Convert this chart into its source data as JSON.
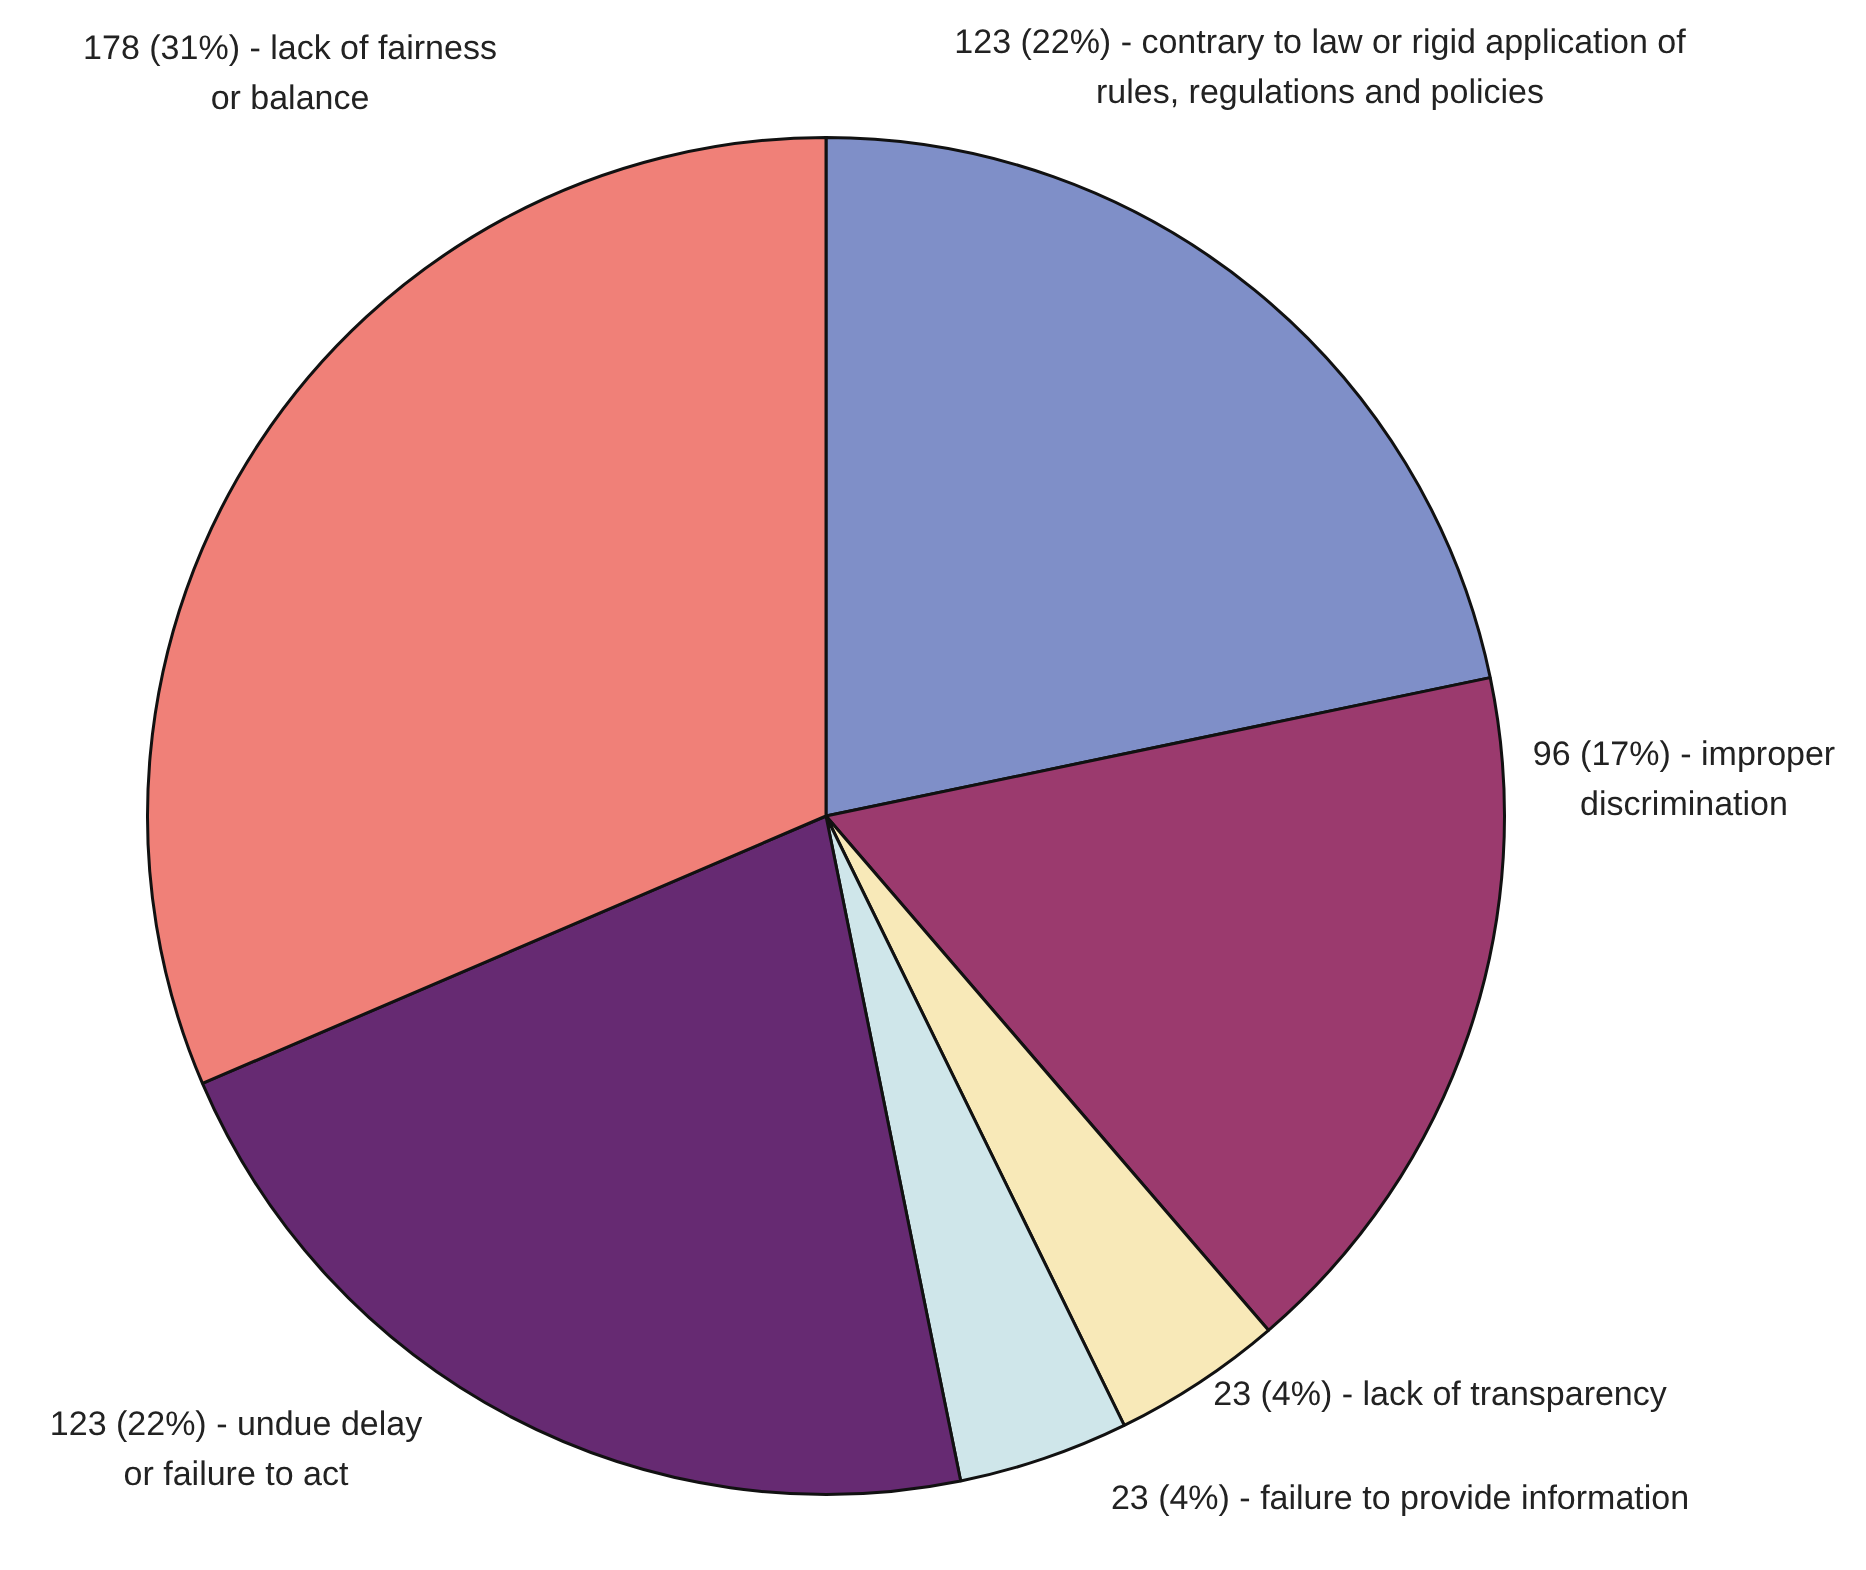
{
  "chart_data": {
    "type": "pie",
    "categories": [
      "123 (22%) - contrary to law or rigid application of rules, regulations and policies",
      "96 (17%) - improper discrimination",
      "23 (4%) - lack of transparency",
      "23 (4%) - failure to provide information",
      "123 (22%) - undue delay or failure to act",
      "178 (31%) - lack of fairness or balance"
    ],
    "values": [
      123,
      96,
      23,
      23,
      123,
      178
    ],
    "colors": [
      "#7f8fc8",
      "#9b3a6e",
      "#f8e9b8",
      "#cfe6ea",
      "#662a72",
      "#f08078"
    ]
  }
}
